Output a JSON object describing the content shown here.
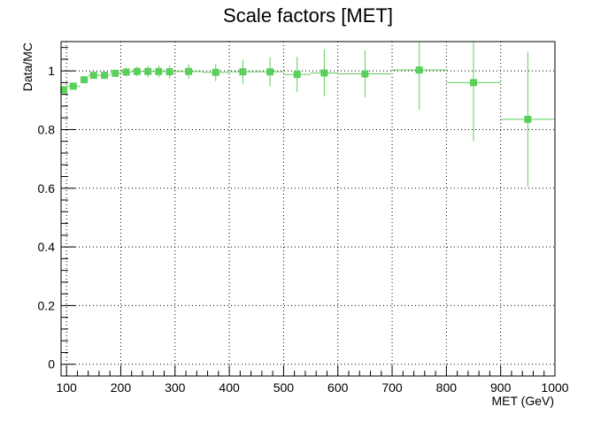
{
  "chart_data": {
    "type": "scatter",
    "title": "Scale factors [MET]",
    "xlabel": "MET (GeV)",
    "ylabel": "Data/MC",
    "xlim": [
      90,
      1000
    ],
    "ylim": [
      -0.04,
      1.1
    ],
    "x_ticks": [
      100,
      200,
      300,
      400,
      500,
      600,
      700,
      800,
      900,
      1000
    ],
    "y_ticks": [
      0,
      0.2,
      0.4,
      0.6,
      0.8,
      1
    ],
    "grid": true,
    "marker": "square",
    "color": "#5bcf5b",
    "points": [
      {
        "x": 95,
        "xerr": 5,
        "y": 0.935,
        "yerr": 0.015
      },
      {
        "x": 112.5,
        "xerr": 12.5,
        "y": 0.948,
        "yerr": 0.01
      },
      {
        "x": 132.5,
        "xerr": 7.5,
        "y": 0.97,
        "yerr": 0.01
      },
      {
        "x": 150,
        "xerr": 10,
        "y": 0.985,
        "yerr": 0.01
      },
      {
        "x": 170,
        "xerr": 10,
        "y": 0.985,
        "yerr": 0.012
      },
      {
        "x": 190,
        "xerr": 10,
        "y": 0.992,
        "yerr": 0.012
      },
      {
        "x": 210,
        "xerr": 10,
        "y": 0.996,
        "yerr": 0.015
      },
      {
        "x": 230,
        "xerr": 10,
        "y": 0.998,
        "yerr": 0.017
      },
      {
        "x": 250,
        "xerr": 10,
        "y": 0.998,
        "yerr": 0.02
      },
      {
        "x": 270,
        "xerr": 10,
        "y": 0.998,
        "yerr": 0.02
      },
      {
        "x": 290,
        "xerr": 10,
        "y": 0.997,
        "yerr": 0.022
      },
      {
        "x": 325,
        "xerr": 25,
        "y": 0.998,
        "yerr": 0.025
      },
      {
        "x": 375,
        "xerr": 25,
        "y": 0.995,
        "yerr": 0.03
      },
      {
        "x": 425,
        "xerr": 25,
        "y": 0.997,
        "yerr": 0.04
      },
      {
        "x": 475,
        "xerr": 25,
        "y": 0.997,
        "yerr": 0.05
      },
      {
        "x": 525,
        "xerr": 25,
        "y": 0.988,
        "yerr": 0.06
      },
      {
        "x": 575,
        "xerr": 25,
        "y": 0.993,
        "yerr": 0.08
      },
      {
        "x": 650,
        "xerr": 50,
        "y": 0.99,
        "yerr": 0.08
      },
      {
        "x": 750,
        "xerr": 50,
        "y": 1.003,
        "yerr": 0.135
      },
      {
        "x": 850,
        "xerr": 50,
        "y": 0.96,
        "yerr": 0.2
      },
      {
        "x": 950,
        "xerr": 50,
        "y": 0.835,
        "yerr": 0.23
      }
    ]
  }
}
